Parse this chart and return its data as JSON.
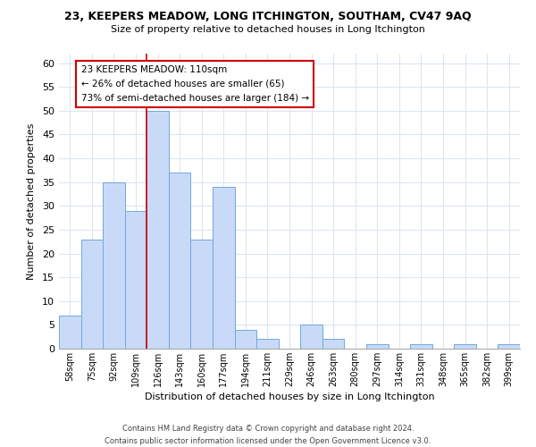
{
  "title": "23, KEEPERS MEADOW, LONG ITCHINGTON, SOUTHAM, CV47 9AQ",
  "subtitle": "Size of property relative to detached houses in Long Itchington",
  "xlabel": "Distribution of detached houses by size in Long Itchington",
  "ylabel": "Number of detached properties",
  "bar_labels": [
    "58sqm",
    "75sqm",
    "92sqm",
    "109sqm",
    "126sqm",
    "143sqm",
    "160sqm",
    "177sqm",
    "194sqm",
    "211sqm",
    "229sqm",
    "246sqm",
    "263sqm",
    "280sqm",
    "297sqm",
    "314sqm",
    "331sqm",
    "348sqm",
    "365sqm",
    "382sqm",
    "399sqm"
  ],
  "bar_values": [
    7,
    23,
    35,
    29,
    50,
    37,
    23,
    34,
    4,
    2,
    0,
    5,
    2,
    0,
    1,
    0,
    1,
    0,
    1,
    0,
    1
  ],
  "bar_color": "#c9daf8",
  "bar_edge_color": "#6fa8dc",
  "ylim": [
    0,
    62
  ],
  "yticks": [
    0,
    5,
    10,
    15,
    20,
    25,
    30,
    35,
    40,
    45,
    50,
    55,
    60
  ],
  "annotation_title": "23 KEEPERS MEADOW: 110sqm",
  "annotation_line1": "← 26% of detached houses are smaller (65)",
  "annotation_line2": "73% of semi-detached houses are larger (184) →",
  "annotation_box_color": "#ffffff",
  "annotation_box_edge": "#cc0000",
  "footer1": "Contains HM Land Registry data © Crown copyright and database right 2024.",
  "footer2": "Contains public sector information licensed under the Open Government Licence v3.0.",
  "background_color": "#ffffff",
  "grid_color": "#dce6f0",
  "ref_line_x": 3.5,
  "ref_line_color": "#cc0000"
}
